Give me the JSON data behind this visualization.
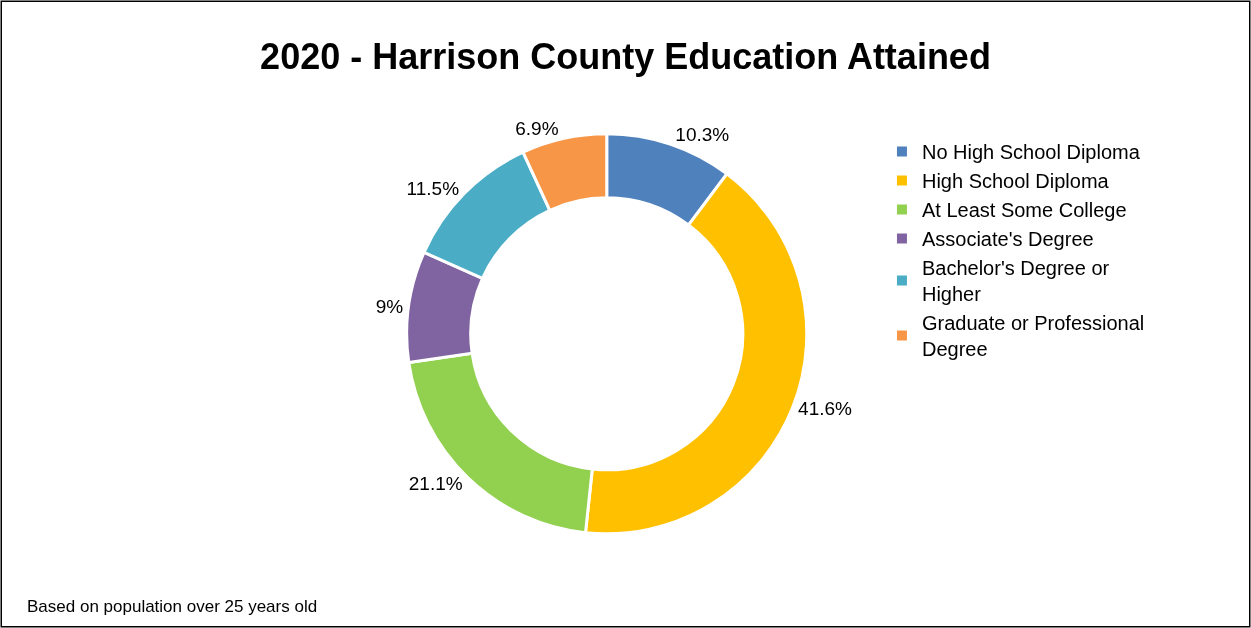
{
  "chart_data": {
    "type": "donut",
    "title": "2020 - Harrison County Education Attained",
    "categories": [
      "No High School Diploma",
      "High School Diploma",
      "At Least Some College",
      "Associate's Degree",
      "Bachelor's Degree or Higher",
      "Graduate or Professional Degree"
    ],
    "values": [
      10.3,
      41.6,
      21.1,
      9,
      11.5,
      6.9
    ],
    "value_labels": [
      "10.3%",
      "41.6%",
      "21.1%",
      "9%",
      "11.5%",
      "6.9%"
    ],
    "colors": [
      "#4f81bd",
      "#ffc000",
      "#92d050",
      "#8064a2",
      "#4bacc6",
      "#f79646"
    ],
    "legend": "right",
    "annotations": [
      "Based on population over 25 years old"
    ]
  }
}
